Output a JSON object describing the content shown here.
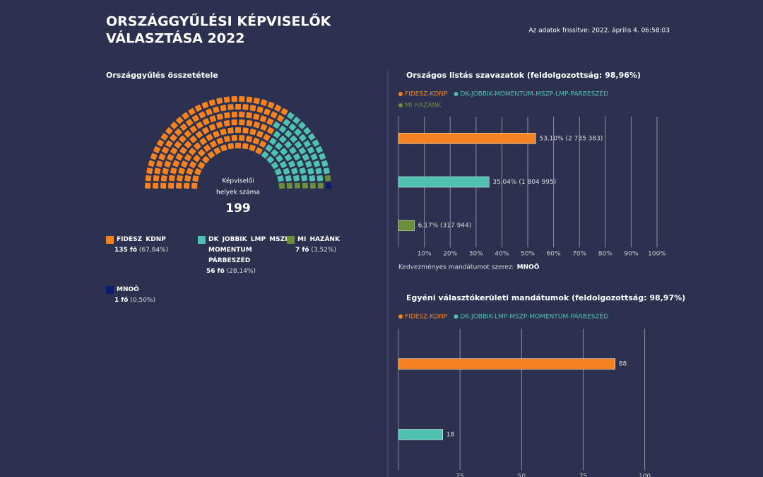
{
  "header": {
    "title": [
      "ORSZÁGGYŰLÉSI KÉPVISELŐK",
      "VÁLASZTÁSA 2022"
    ],
    "updated": "Az adatok frissítve: 2022. április 4. 06:58:03"
  },
  "chart_data": [
    {
      "type": "parliament",
      "title": "Országgyűlés összetétele",
      "center_label": [
        "Képviselői",
        "helyek száma"
      ],
      "total": 199,
      "categories": [
        "FIDESZ  KDNP",
        "DK  JOBBIK  LMP  MSZP MOMENTUM PÁRBESZÉD",
        "MI HAZÁNK",
        "MNOŐ"
      ],
      "values": [
        135,
        56,
        7,
        1
      ],
      "value_labels": [
        "135 fő",
        "56 fő",
        "7 fő",
        "1 fő"
      ],
      "shares": [
        67.84,
        28.14,
        3.52,
        0.5
      ],
      "share_labels": [
        "(67,84%)",
        "(28,14%)",
        "(3,52%)",
        "(0,50%)"
      ],
      "colors": [
        "#f58220",
        "#4fc1b0",
        "#6b8e3a",
        "#0b1c6e"
      ]
    },
    {
      "type": "bar",
      "title": "Országos listás szavazatok (feldolgozottság: 98,96%)",
      "series": [
        {
          "name": "FIDESZ-KDNP",
          "color": "#f58220",
          "values": [
            53.1
          ],
          "value_labels": [
            "53,10% (2 735 383)"
          ]
        },
        {
          "name": "DK-JOBBIK-MOMENTUM-MSZP-LMP-PÁRBESZÉD",
          "color": "#4fc1b0",
          "values": [
            35.04
          ],
          "value_labels": [
            "35,04% (1 804 995)"
          ]
        },
        {
          "name": "MI HAZÁNK",
          "color": "#6b8e3a",
          "values": [
            6.17
          ],
          "value_labels": [
            "6,17% (317 944)"
          ]
        }
      ],
      "xlim": [
        0,
        100
      ],
      "xticks": [
        {
          "value": 10,
          "label": "10%"
        },
        {
          "value": 20,
          "label": "20%"
        },
        {
          "value": 30,
          "label": "30%"
        },
        {
          "value": 40,
          "label": "40%"
        },
        {
          "value": 50,
          "label": "50%"
        },
        {
          "value": 60,
          "label": "60%"
        },
        {
          "value": 70,
          "label": "70%"
        },
        {
          "value": 80,
          "label": "80%"
        },
        {
          "value": 90,
          "label": "90%"
        },
        {
          "value": 100,
          "label": "100%"
        }
      ],
      "grid": true,
      "note": "Kedvezményes mandátumot szerez:",
      "note_value": "MNOŐ"
    },
    {
      "type": "bar",
      "title": "Egyéni választókerületi mandátumok (feldolgozottság: 98,97%)",
      "series": [
        {
          "name": "FIDESZ-KDNP",
          "color": "#f58220",
          "values": [
            88
          ]
        },
        {
          "name": "DK-JOBBIK-LMP-MSZP-MOMENTUM-PÁRBESZÉD",
          "color": "#4fc1b0",
          "values": [
            18
          ]
        }
      ],
      "xlim": [
        0,
        105
      ],
      "xticks": [
        25,
        50,
        75,
        100
      ],
      "grid": true
    }
  ]
}
